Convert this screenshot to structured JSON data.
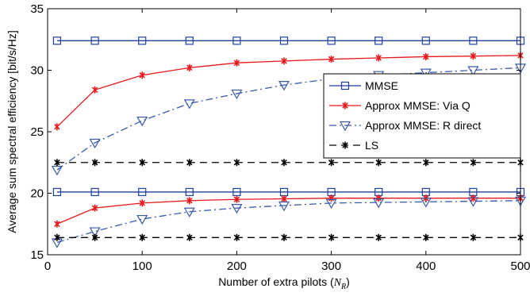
{
  "chart_data": {
    "type": "line",
    "xlabel": "Number of extra pilots (",
    "xlabel_symbol": "N",
    "xlabel_subscript": "R",
    "xlabel_end": ")",
    "ylabel": "Average sum spectral efficiency [bit/s/Hz]",
    "xlim": [
      0,
      500
    ],
    "ylim": [
      15,
      35
    ],
    "xticks": [
      0,
      100,
      200,
      300,
      400,
      500
    ],
    "yticks": [
      15,
      20,
      25,
      30,
      35
    ],
    "grid": false,
    "legend_position": "right",
    "x": [
      10,
      50,
      100,
      150,
      200,
      250,
      300,
      350,
      400,
      450,
      500
    ],
    "series": [
      {
        "name": "MMSE",
        "color": "#1f3f9f",
        "linestyle": "solid",
        "marker": "square",
        "group": "upper",
        "values": [
          32.4,
          32.4,
          32.4,
          32.4,
          32.4,
          32.4,
          32.4,
          32.4,
          32.4,
          32.4,
          32.4
        ]
      },
      {
        "name": "Approx MMSE: Via Q",
        "color": "#e8181c",
        "linestyle": "solid",
        "marker": "asterisk",
        "group": "upper",
        "values": [
          25.4,
          28.4,
          29.6,
          30.2,
          30.6,
          30.75,
          30.9,
          31.0,
          31.1,
          31.15,
          31.2
        ]
      },
      {
        "name": "Approx MMSE: R direct",
        "color": "#3a5aa8",
        "linestyle": "dashdot",
        "marker": "triangle-down",
        "group": "upper",
        "values": [
          21.9,
          24.1,
          25.9,
          27.3,
          28.1,
          28.8,
          29.3,
          29.6,
          29.8,
          30.0,
          30.2
        ]
      },
      {
        "name": "LS",
        "color": "#000000",
        "linestyle": "dashed",
        "marker": "asterisk",
        "group": "upper",
        "values": [
          22.5,
          22.5,
          22.5,
          22.5,
          22.5,
          22.5,
          22.5,
          22.5,
          22.5,
          22.5,
          22.5
        ]
      },
      {
        "color": "#1f3f9f",
        "linestyle": "solid",
        "marker": "square",
        "group": "lower",
        "values": [
          20.1,
          20.1,
          20.1,
          20.1,
          20.1,
          20.1,
          20.1,
          20.1,
          20.1,
          20.1,
          20.1
        ]
      },
      {
        "color": "#e8181c",
        "linestyle": "solid",
        "marker": "asterisk",
        "group": "lower",
        "values": [
          17.5,
          18.8,
          19.2,
          19.4,
          19.5,
          19.55,
          19.6,
          19.6,
          19.6,
          19.6,
          19.6
        ]
      },
      {
        "color": "#3a5aa8",
        "linestyle": "dashdot",
        "marker": "triangle-down",
        "group": "lower",
        "values": [
          16.0,
          16.9,
          17.9,
          18.5,
          18.8,
          19.0,
          19.2,
          19.25,
          19.3,
          19.35,
          19.4
        ]
      },
      {
        "color": "#000000",
        "linestyle": "dashed",
        "marker": "asterisk",
        "group": "lower",
        "values": [
          16.4,
          16.4,
          16.4,
          16.4,
          16.4,
          16.4,
          16.4,
          16.4,
          16.4,
          16.4,
          16.4
        ]
      }
    ]
  }
}
